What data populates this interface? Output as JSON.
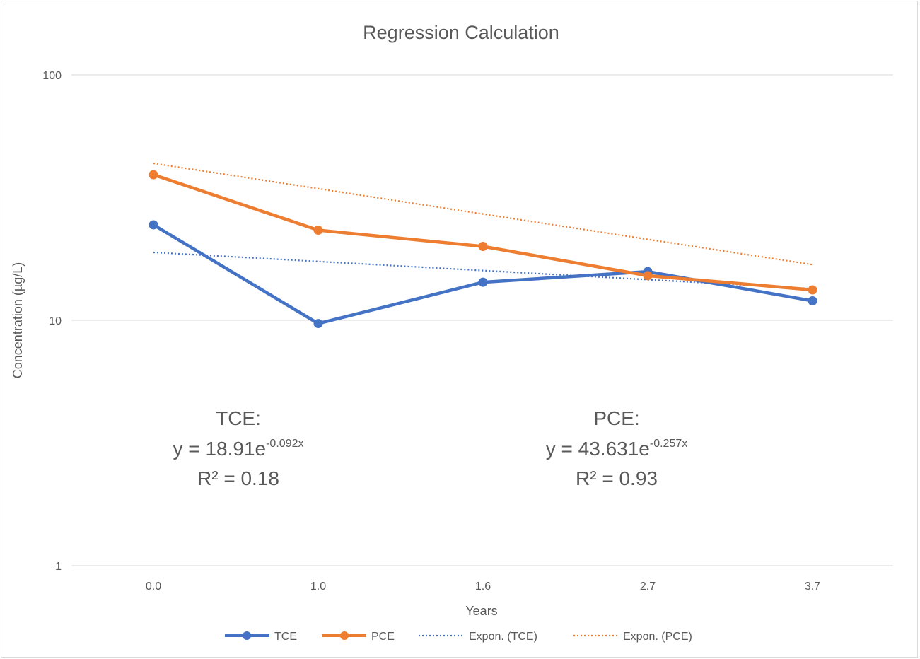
{
  "chart_data": {
    "type": "line",
    "title": "Regression Calculation",
    "xlabel": "Years",
    "ylabel": "Concentration (µg/L)",
    "y_scale": "log",
    "ylim": [
      1,
      100
    ],
    "y_ticks": [
      "1",
      "10",
      "100"
    ],
    "categories": [
      "0.0",
      "1.0",
      "1.6",
      "2.7",
      "3.7"
    ],
    "grid": true,
    "legend_position": "bottom",
    "colors": {
      "TCE": "#4472c4",
      "PCE": "#ed7d31"
    },
    "series": [
      {
        "name": "TCE",
        "values": [
          24.5,
          9.7,
          14.3,
          15.8,
          12.0
        ]
      },
      {
        "name": "PCE",
        "values": [
          39.2,
          23.3,
          20.0,
          15.2,
          13.3
        ]
      }
    ],
    "trendlines": [
      {
        "name": "Expon. (TCE)",
        "of": "TCE",
        "a": 18.91,
        "b": -0.092
      },
      {
        "name": "Expon. (PCE)",
        "of": "PCE",
        "a": 43.631,
        "b": -0.257
      }
    ],
    "annotations": [
      {
        "label": "TCE:",
        "equation_prefix": "y = 18.91e",
        "equation_exponent": "-0.092x",
        "r2": "R² = 0.18"
      },
      {
        "label": "PCE:",
        "equation_prefix": "y = 43.631e",
        "equation_exponent": "-0.257x",
        "r2": "R² = 0.93"
      }
    ],
    "legend": [
      "TCE",
      "PCE",
      "Expon. (TCE)",
      "Expon. (PCE)"
    ]
  }
}
